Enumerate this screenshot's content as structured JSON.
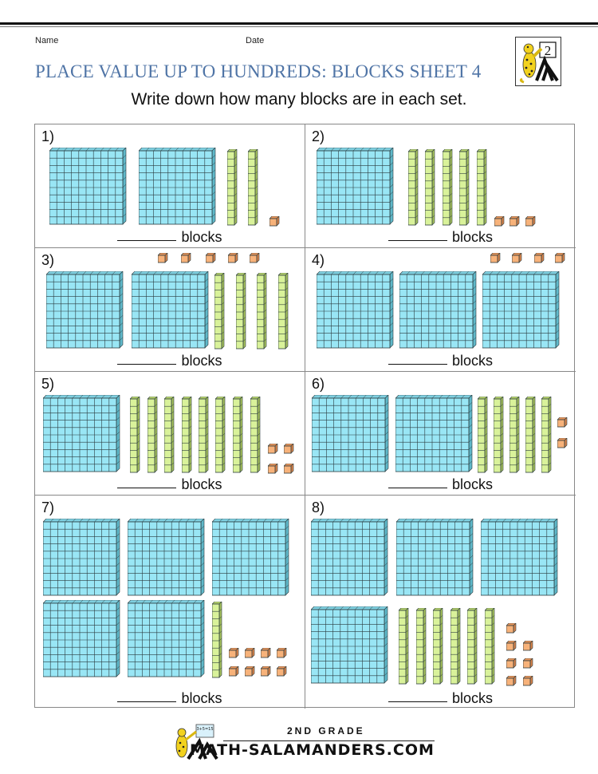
{
  "header": {
    "name_label": "Name",
    "date_label": "Date",
    "title": "PLACE VALUE UP TO HUNDREDS: BLOCKS SHEET 4",
    "instructions": "Write down how many blocks are in each set.",
    "logo_badge": "2"
  },
  "colors": {
    "title": "#4f74a6",
    "hundred_block": "#99e6f5",
    "ten_rod": "#d9f29a",
    "one_cube": "#f7b27a",
    "outline": "#2b3b3f"
  },
  "answer_suffix": "blocks",
  "problems": [
    {
      "number": "1)",
      "hundreds": 2,
      "tens": 2,
      "ones": 1
    },
    {
      "number": "2)",
      "hundreds": 1,
      "tens": 5,
      "ones": 3
    },
    {
      "number": "3)",
      "hundreds": 2,
      "tens": 4,
      "ones": 5
    },
    {
      "number": "4)",
      "hundreds": 3,
      "tens": 0,
      "ones": 4
    },
    {
      "number": "5)",
      "hundreds": 1,
      "tens": 8,
      "ones": 4
    },
    {
      "number": "6)",
      "hundreds": 2,
      "tens": 5,
      "ones": 2
    },
    {
      "number": "7)",
      "hundreds": 5,
      "tens": 1,
      "ones": 8
    },
    {
      "number": "8)",
      "hundreds": 4,
      "tens": 6,
      "ones": 7
    }
  ],
  "footer": {
    "grade": "2ND GRADE",
    "site": "MATH-SALAMANDERS.COM",
    "board_text": "3+5=15"
  }
}
